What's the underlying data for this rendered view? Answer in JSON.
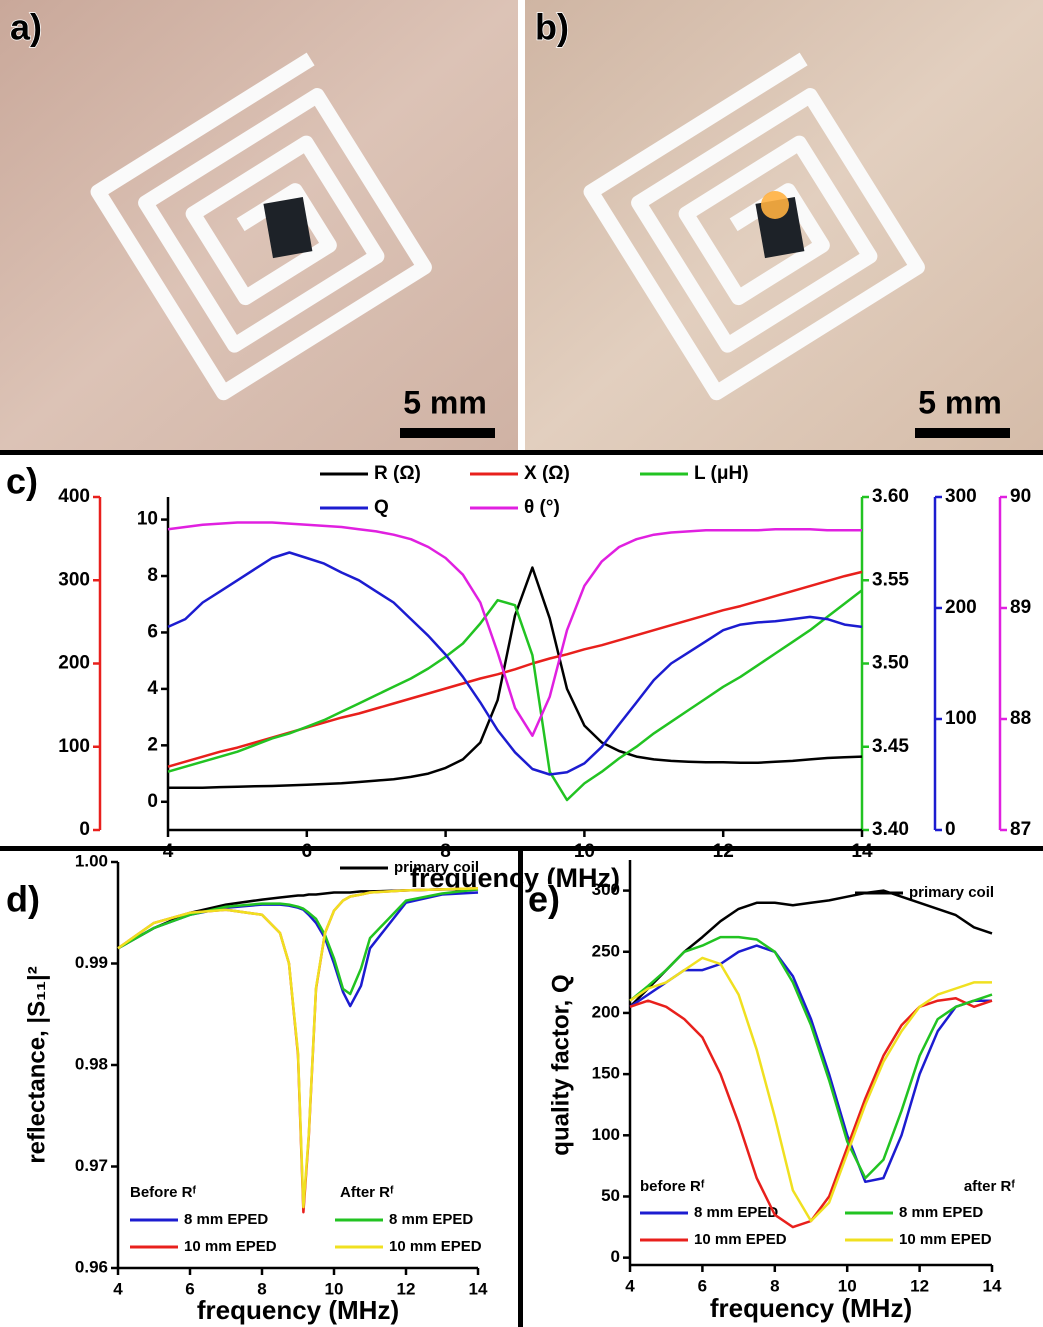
{
  "photos": [
    {
      "label": "a)",
      "scale_bar": "5 mm"
    },
    {
      "label": "b)",
      "scale_bar": "5 mm"
    }
  ],
  "chart_data": [
    {
      "type": "line",
      "label": "c)",
      "xlabel": "frequency (MHz)",
      "xlim": [
        4,
        14
      ],
      "xticks": [
        4,
        6,
        8,
        10,
        12,
        14
      ],
      "x": [
        4,
        4.25,
        4.5,
        4.75,
        5,
        5.25,
        5.5,
        5.75,
        6,
        6.25,
        6.5,
        6.75,
        7,
        7.25,
        7.5,
        7.75,
        8,
        8.25,
        8.5,
        8.75,
        9,
        9.25,
        9.5,
        9.75,
        10,
        10.25,
        10.5,
        10.75,
        11,
        11.25,
        11.5,
        11.75,
        12,
        12.25,
        12.5,
        12.75,
        13,
        13.25,
        13.5,
        13.75,
        14
      ],
      "ylim": [
        -1,
        10.8
      ],
      "yticks": [
        0,
        2,
        4,
        6,
        8,
        10
      ],
      "y2lim": [
        0,
        400
      ],
      "y2ticks": [
        0,
        100,
        200,
        300,
        400
      ],
      "y3lim": [
        3.4,
        3.6
      ],
      "y3ticks": [
        {
          "value": 3.4,
          "label": "3.40"
        },
        3.45,
        {
          "value": 3.5,
          "label": "3.50"
        },
        3.55,
        {
          "value": 3.6,
          "label": "3.60"
        }
      ],
      "y4lim": [
        0,
        300
      ],
      "y4ticks": [
        0,
        100,
        200,
        300
      ],
      "y5lim": [
        87,
        90
      ],
      "y5ticks": [
        87,
        88,
        89,
        90
      ],
      "series": [
        {
          "name": "R (Ω)",
          "color": "#000000",
          "axis": "y",
          "values": [
            0.5,
            0.5,
            0.5,
            0.52,
            0.53,
            0.55,
            0.56,
            0.58,
            0.6,
            0.63,
            0.66,
            0.7,
            0.75,
            0.8,
            0.88,
            1.0,
            1.2,
            1.5,
            2.1,
            3.6,
            6.6,
            8.3,
            6.5,
            4.0,
            2.7,
            2.1,
            1.8,
            1.6,
            1.5,
            1.45,
            1.42,
            1.4,
            1.4,
            1.38,
            1.38,
            1.42,
            1.45,
            1.5,
            1.55,
            1.58,
            1.6
          ]
        },
        {
          "name": "X (Ω)",
          "color": "#e8201c",
          "axis": "y2",
          "values": [
            76,
            82,
            88,
            94,
            99,
            105,
            111,
            117,
            123,
            129,
            135,
            140,
            146,
            152,
            158,
            164,
            170,
            176,
            182,
            187,
            193,
            200,
            206,
            211,
            217,
            222,
            228,
            234,
            240,
            246,
            252,
            258,
            264,
            269,
            275,
            281,
            287,
            293,
            299,
            305,
            310
          ]
        },
        {
          "name": "L (μH)",
          "color": "#22c322",
          "axis": "y3",
          "values": [
            3.435,
            3.438,
            3.441,
            3.444,
            3.447,
            3.451,
            3.455,
            3.458,
            3.462,
            3.466,
            3.471,
            3.476,
            3.481,
            3.486,
            3.491,
            3.497,
            3.504,
            3.512,
            3.524,
            3.538,
            3.535,
            3.505,
            3.435,
            3.418,
            3.428,
            3.435,
            3.443,
            3.45,
            3.458,
            3.465,
            3.472,
            3.479,
            3.486,
            3.492,
            3.499,
            3.506,
            3.513,
            3.52,
            3.528,
            3.536,
            3.544
          ]
        },
        {
          "name": "Q",
          "color": "#1c1cd0",
          "axis": "y4",
          "values": [
            183,
            190,
            205,
            215,
            225,
            235,
            245,
            250,
            245,
            240,
            232,
            225,
            215,
            205,
            190,
            175,
            158,
            138,
            115,
            90,
            70,
            55,
            50,
            52,
            60,
            75,
            95,
            115,
            135,
            150,
            160,
            170,
            180,
            185,
            187,
            188,
            190,
            192,
            190,
            185,
            183
          ]
        },
        {
          "name": "θ (°)",
          "color": "#e020e0",
          "axis": "y5",
          "values": [
            89.71,
            89.73,
            89.75,
            89.76,
            89.77,
            89.77,
            89.77,
            89.76,
            89.75,
            89.74,
            89.73,
            89.71,
            89.69,
            89.66,
            89.62,
            89.55,
            89.45,
            89.3,
            89.05,
            88.6,
            88.1,
            87.85,
            88.2,
            88.8,
            89.2,
            89.42,
            89.55,
            89.62,
            89.66,
            89.68,
            89.69,
            89.7,
            89.7,
            89.7,
            89.7,
            89.71,
            89.71,
            89.71,
            89.7,
            89.7,
            89.7
          ]
        }
      ]
    },
    {
      "type": "line",
      "label": "d)",
      "xlabel": "frequency (MHz)",
      "ylabel": "reflectance, |S₁₁|²",
      "xlim": [
        4,
        14
      ],
      "xticks": [
        4,
        6,
        8,
        10,
        12,
        14
      ],
      "ylim": [
        0.96,
        1.0
      ],
      "yticks": [
        0.96,
        0.97,
        0.98,
        0.99,
        {
          "value": 1.0,
          "label": "1.00"
        }
      ],
      "legend_titles": [
        "Before Rᶠ",
        "After Rᶠ"
      ],
      "x": [
        4,
        5,
        6,
        7,
        8,
        8.5,
        8.75,
        9,
        9.15,
        9.3,
        9.5,
        9.75,
        10,
        10.25,
        10.45,
        10.75,
        11,
        12,
        13,
        14
      ],
      "series": [
        {
          "name": "primary coil",
          "color": "#000000",
          "values": [
            0.9915,
            0.9935,
            0.995,
            0.9958,
            0.9963,
            0.9965,
            0.9966,
            0.9967,
            0.9967,
            0.9968,
            0.9968,
            0.9969,
            0.997,
            0.997,
            0.997,
            0.9971,
            0.9971,
            0.9972,
            0.9973,
            0.9973
          ]
        },
        {
          "name": "8 mm EPED",
          "color": "#1c1cd0",
          "values": [
            0.9915,
            0.9935,
            0.9948,
            0.9955,
            0.9958,
            0.9958,
            0.9957,
            0.9955,
            0.9953,
            0.9948,
            0.994,
            0.9925,
            0.99,
            0.9872,
            0.9858,
            0.9878,
            0.9915,
            0.996,
            0.9968,
            0.997
          ]
        },
        {
          "name": "10 mm EPED",
          "color": "#e8201c",
          "values": [
            0.9915,
            0.994,
            0.995,
            0.9953,
            0.9948,
            0.993,
            0.99,
            0.981,
            0.9655,
            0.973,
            0.9875,
            0.993,
            0.9952,
            0.9962,
            0.9966,
            0.9968,
            0.997,
            0.9972,
            0.9973,
            0.9974
          ]
        },
        {
          "name": "8 mm EPED",
          "color": "#22c322",
          "values": [
            0.9915,
            0.9935,
            0.9948,
            0.9956,
            0.9959,
            0.9959,
            0.9958,
            0.9956,
            0.9954,
            0.995,
            0.9944,
            0.9928,
            0.9905,
            0.9875,
            0.987,
            0.9895,
            0.9925,
            0.9962,
            0.9969,
            0.9973
          ]
        },
        {
          "name": "10 mm EPED",
          "color": "#f0e020",
          "values": [
            0.9915,
            0.994,
            0.995,
            0.9953,
            0.9948,
            0.993,
            0.99,
            0.9812,
            0.966,
            0.9732,
            0.9876,
            0.993,
            0.9952,
            0.9962,
            0.9966,
            0.9968,
            0.997,
            0.9972,
            0.9973,
            0.9974
          ]
        }
      ]
    },
    {
      "type": "line",
      "label": "e)",
      "xlabel": "frequency (MHz)",
      "ylabel": "quality factor, Q",
      "xlim": [
        4,
        14
      ],
      "xticks": [
        4,
        6,
        8,
        10,
        12,
        14
      ],
      "ylim": [
        -6,
        325
      ],
      "yticks": [
        0,
        50,
        100,
        150,
        200,
        250,
        300
      ],
      "legend_titles": [
        "before Rᶠ",
        "after Rᶠ"
      ],
      "x": [
        4,
        4.5,
        5,
        5.5,
        6,
        6.5,
        7,
        7.5,
        8,
        8.5,
        9,
        9.5,
        10,
        10.5,
        11,
        11.5,
        12,
        12.5,
        13,
        13.5,
        14
      ],
      "series": [
        {
          "name": "primary coil",
          "color": "#000000",
          "values": [
            205,
            220,
            235,
            250,
            262,
            275,
            285,
            290,
            290,
            288,
            290,
            292,
            295,
            298,
            300,
            295,
            290,
            285,
            280,
            270,
            265
          ]
        },
        {
          "name": "8 mm EPED",
          "color": "#1c1cd0",
          "values": [
            205,
            215,
            225,
            235,
            235,
            240,
            250,
            255,
            250,
            230,
            195,
            150,
            100,
            62,
            65,
            100,
            150,
            185,
            205,
            210,
            210
          ]
        },
        {
          "name": "10 mm EPED",
          "color": "#e8201c",
          "values": [
            205,
            210,
            205,
            195,
            180,
            150,
            110,
            65,
            35,
            25,
            30,
            50,
            90,
            130,
            165,
            190,
            205,
            210,
            212,
            205,
            210
          ]
        },
        {
          "name": "8 mm EPED",
          "color": "#22c322",
          "values": [
            210,
            222,
            235,
            250,
            255,
            262,
            262,
            260,
            250,
            225,
            190,
            145,
            95,
            65,
            80,
            120,
            165,
            195,
            205,
            210,
            215
          ]
        },
        {
          "name": "10 mm EPED",
          "color": "#f0e020",
          "values": [
            210,
            220,
            225,
            235,
            245,
            240,
            215,
            170,
            115,
            55,
            30,
            45,
            85,
            125,
            160,
            185,
            205,
            215,
            220,
            225,
            225
          ]
        }
      ]
    }
  ]
}
